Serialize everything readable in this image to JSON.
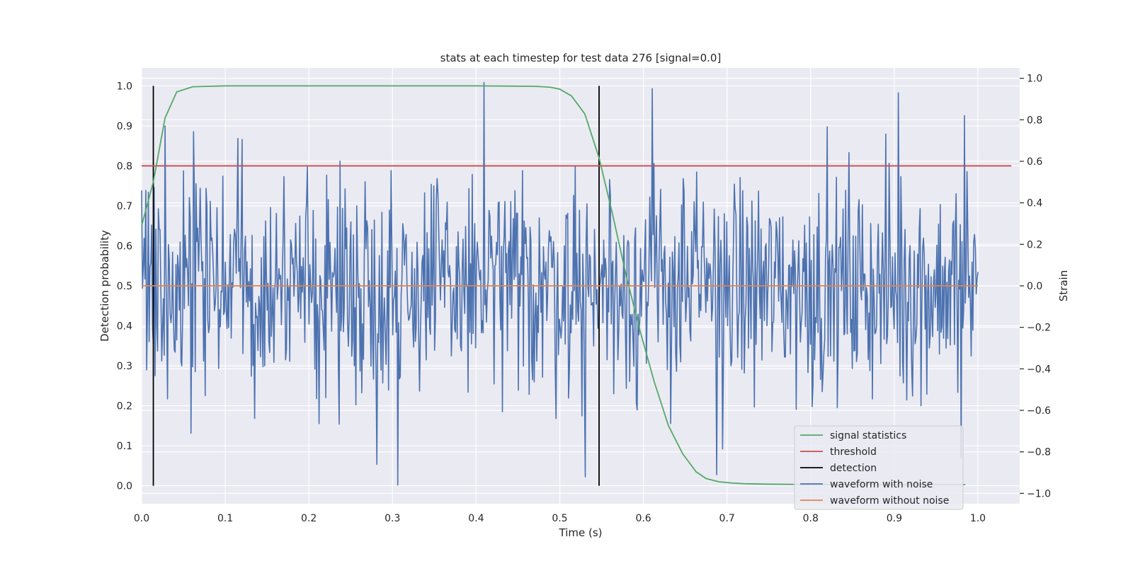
{
  "chart_data": {
    "type": "line",
    "title": "stats at each timestep for test data 276 [signal=0.0]",
    "xlabel": "Time (s)",
    "ylabel": "Detection probability",
    "y2label": "Strain",
    "xlim": [
      0.0,
      1.05
    ],
    "ylim": [
      -0.045,
      1.045
    ],
    "y2lim": [
      -1.05,
      1.05
    ],
    "x_ticks": [
      0.0,
      0.1,
      0.2,
      0.3,
      0.4,
      0.5,
      0.6,
      0.7,
      0.8,
      0.9,
      1.0
    ],
    "x_tick_labels": [
      "0.0",
      "0.1",
      "0.2",
      "0.3",
      "0.4",
      "0.5",
      "0.6",
      "0.7",
      "0.8",
      "0.9",
      "1.0"
    ],
    "y_ticks": [
      0.0,
      0.1,
      0.2,
      0.3,
      0.4,
      0.5,
      0.6,
      0.7,
      0.8,
      0.9,
      1.0
    ],
    "y_tick_labels": [
      "0.0",
      "0.1",
      "0.2",
      "0.3",
      "0.4",
      "0.5",
      "0.6",
      "0.7",
      "0.8",
      "0.9",
      "1.0"
    ],
    "y2_ticks": [
      -1.0,
      -0.8,
      -0.6,
      -0.4,
      -0.2,
      0.0,
      0.2,
      0.4,
      0.6,
      0.8,
      1.0
    ],
    "y2_tick_labels": [
      "−1.0",
      "−0.8",
      "−0.6",
      "−0.4",
      "−0.2",
      "0.0",
      "0.2",
      "0.4",
      "0.6",
      "0.8",
      "1.0"
    ],
    "grid": true,
    "legend_position": "bottom-right",
    "colors": {
      "background": "#eaeaf2",
      "grid": "#ffffff",
      "signal_statistics": "#55a868",
      "threshold": "#c44e52",
      "detection": "#000000",
      "waveform_with_noise": "#4c72b0",
      "waveform_without_noise": "#dd8452"
    },
    "series": [
      {
        "name": "signal statistics",
        "axis": "left",
        "x": [
          0.0,
          0.014,
          0.028,
          0.042,
          0.061,
          0.1,
          0.2,
          0.3,
          0.4,
          0.47,
          0.488,
          0.5,
          0.514,
          0.53,
          0.547,
          0.563,
          0.58,
          0.597,
          0.613,
          0.63,
          0.647,
          0.663,
          0.675,
          0.69,
          0.705,
          0.72,
          0.75,
          0.8,
          0.9,
          0.985
        ],
        "y": [
          0.65,
          0.76,
          0.92,
          0.985,
          0.998,
          1.0,
          1.0,
          1.0,
          1.0,
          0.999,
          0.997,
          0.992,
          0.975,
          0.93,
          0.82,
          0.68,
          0.52,
          0.38,
          0.26,
          0.15,
          0.08,
          0.035,
          0.018,
          0.01,
          0.007,
          0.005,
          0.004,
          0.003,
          0.003,
          0.003
        ]
      },
      {
        "name": "threshold",
        "axis": "left",
        "x": [
          0.0,
          1.04
        ],
        "y": [
          0.8,
          0.8
        ]
      },
      {
        "name": "detection",
        "axis": "left",
        "segments": [
          {
            "x": 0.014,
            "y0": 0.0,
            "y1": 1.0
          },
          {
            "x": 0.547,
            "y0": 0.0,
            "y1": 1.0
          }
        ]
      },
      {
        "name": "waveform with noise",
        "axis": "right",
        "x_start": 0.0,
        "x_end": 1.0,
        "points": 1000,
        "y_min": -0.96,
        "y_max": 0.98,
        "y_std": 0.26,
        "peaks": [
          {
            "x": 0.028,
            "y": 0.77
          },
          {
            "x": 0.059,
            "y": -0.71
          },
          {
            "x": 0.115,
            "y": 0.71
          },
          {
            "x": 0.281,
            "y": -0.86
          },
          {
            "x": 0.306,
            "y": -0.96
          },
          {
            "x": 0.409,
            "y": 0.98
          },
          {
            "x": 0.531,
            "y": -0.92
          },
          {
            "x": 0.611,
            "y": 0.95
          },
          {
            "x": 0.688,
            "y": -0.91
          },
          {
            "x": 0.905,
            "y": 0.93
          },
          {
            "x": 0.98,
            "y": -0.83
          },
          {
            "x": 0.984,
            "y": 0.82
          }
        ]
      },
      {
        "name": "waveform without noise",
        "axis": "right",
        "x": [
          0.0,
          1.0
        ],
        "y": [
          0.0,
          0.0
        ]
      }
    ]
  }
}
